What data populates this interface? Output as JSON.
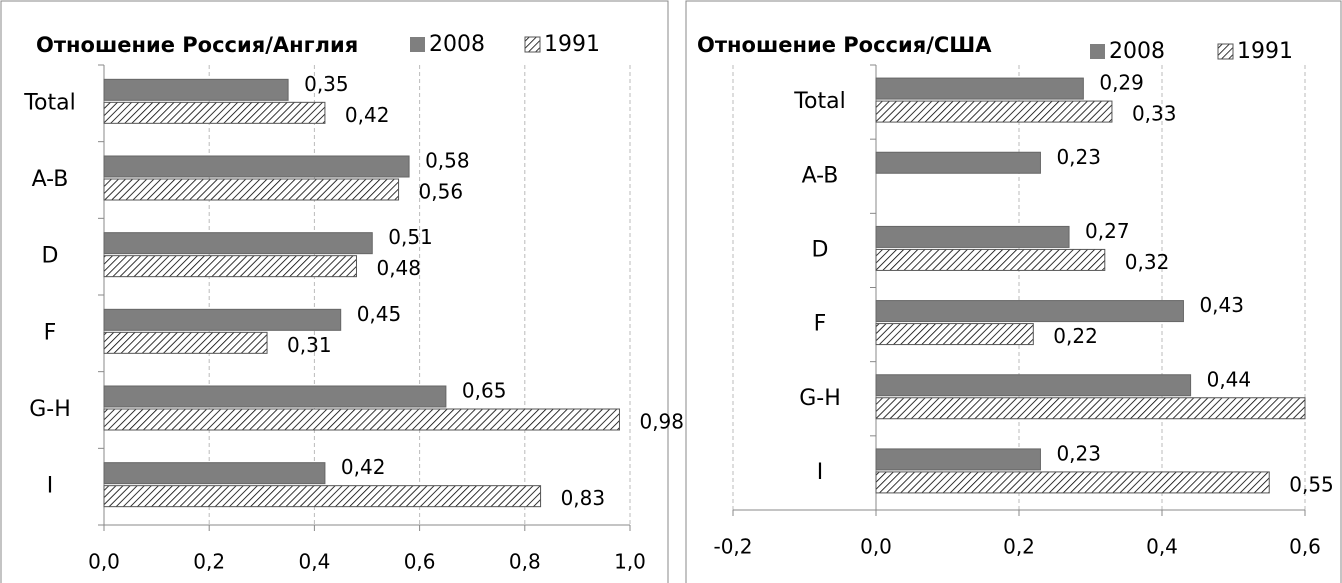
{
  "chart_data": [
    {
      "type": "bar",
      "orientation": "horizontal",
      "title": "Отношение Россия/Англия",
      "categories": [
        "Total",
        "A-B",
        "D",
        "F",
        "G-H",
        "I"
      ],
      "series": [
        {
          "name": "2008",
          "color": "#7f7f7f",
          "pattern": "solid",
          "values": [
            0.35,
            0.58,
            0.51,
            0.45,
            0.65,
            0.42
          ],
          "value_labels": [
            "0,35",
            "0,58",
            "0,51",
            "0,45",
            "0,65",
            "0,42"
          ]
        },
        {
          "name": "1991",
          "color": "#000000",
          "pattern": "hatch",
          "values": [
            0.42,
            0.56,
            0.48,
            0.31,
            0.98,
            0.83
          ],
          "value_labels": [
            "0,42",
            "0,56",
            "0,48",
            "0,31",
            "0,98",
            "0,83"
          ]
        }
      ],
      "xlim": [
        0,
        1.0
      ],
      "xticks": [
        {
          "value": 0,
          "label": "0,0"
        },
        {
          "value": 0.2,
          "label": "0,2"
        },
        {
          "value": 0.4,
          "label": "0,4"
        },
        {
          "value": 0.6,
          "label": "0,6"
        },
        {
          "value": 0.8,
          "label": "0,8"
        },
        {
          "value": 1.0,
          "label": "1,0"
        }
      ],
      "grid": true
    },
    {
      "type": "bar",
      "orientation": "horizontal",
      "title": "Отношение Россия/США",
      "categories": [
        "Total",
        "A-B",
        "D",
        "F",
        "G-H",
        "I"
      ],
      "series": [
        {
          "name": "2008",
          "color": "#7f7f7f",
          "pattern": "solid",
          "values": [
            0.29,
            0.23,
            0.27,
            0.43,
            0.44,
            0.23
          ],
          "value_labels": [
            "0,29",
            "0,23",
            "0,27",
            "0,43",
            "0,44",
            "0,23"
          ]
        },
        {
          "name": "1991",
          "color": "#000000",
          "pattern": "hatch",
          "values": [
            0.33,
            null,
            0.32,
            0.22,
            0.6,
            0.55
          ],
          "value_labels": [
            "0,33",
            null,
            "0,32",
            "0,22",
            null,
            "0,55"
          ]
        }
      ],
      "xlim": [
        -0.2,
        0.6
      ],
      "xticks": [
        {
          "value": -0.2,
          "label": "-0,2"
        },
        {
          "value": 0,
          "label": "0,0"
        },
        {
          "value": 0.2,
          "label": "0,2"
        },
        {
          "value": 0.4,
          "label": "0,4"
        },
        {
          "value": 0.6,
          "label": "0,6"
        }
      ],
      "grid": true
    }
  ]
}
